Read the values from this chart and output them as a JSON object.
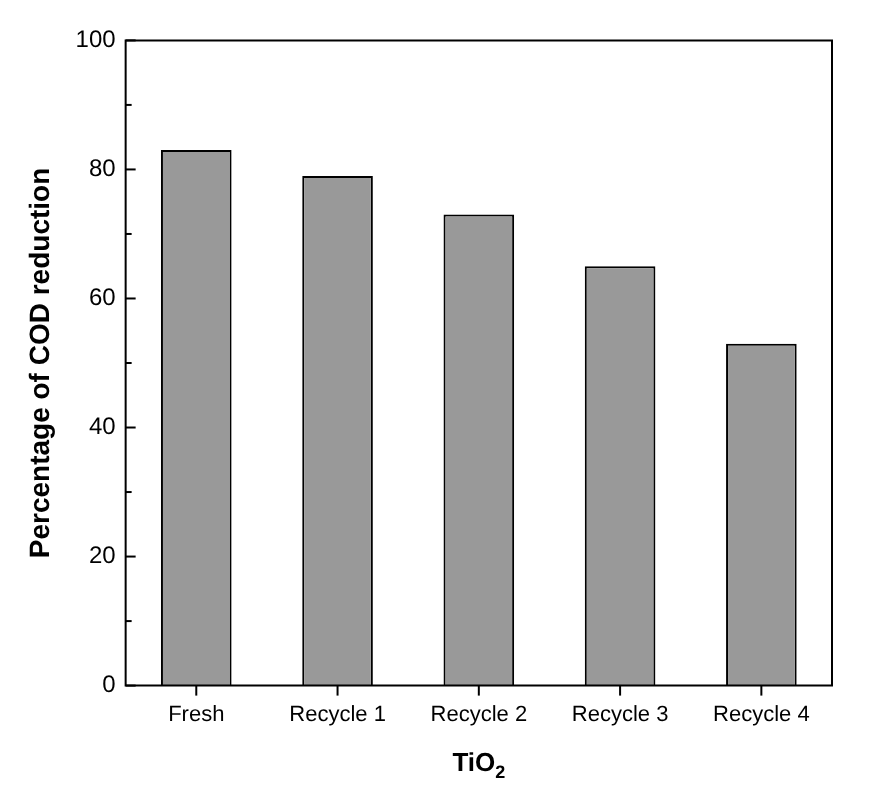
{
  "chart_data": {
    "type": "bar",
    "xlabel": "TiO$_{2}$",
    "ylabel": "Percentage of COD reduction",
    "categories": [
      "Fresh",
      "Recycle 1",
      "Recycle 2",
      "Recycle 3",
      "Recycle 4"
    ],
    "values": [
      83,
      79,
      73,
      65,
      53
    ],
    "color": "#999999",
    "ylim": [
      0,
      100
    ],
    "yticks": [
      0,
      20,
      40,
      60,
      80,
      100
    ],
    "grid": false,
    "legend": false
  }
}
